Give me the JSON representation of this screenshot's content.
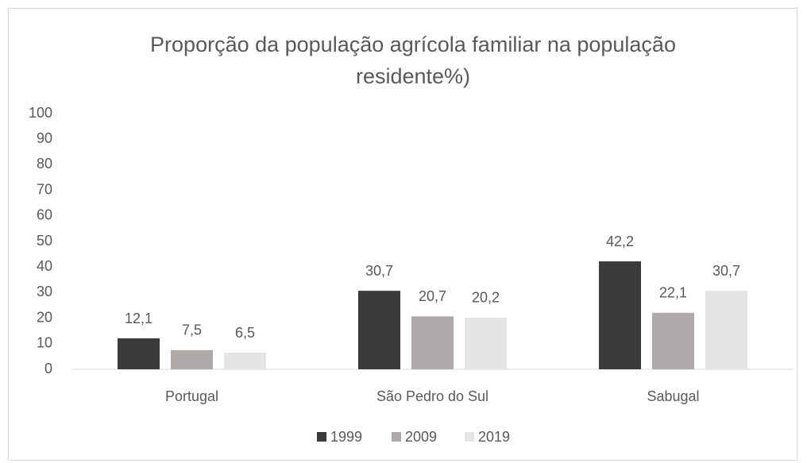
{
  "chart_data": {
    "type": "bar",
    "title": "Proporção da população agrícola familiar na população residente%)",
    "categories": [
      "Portugal",
      "São Pedro do Sul",
      "Sabugal"
    ],
    "series": [
      {
        "name": "1999",
        "color": "#3b3b3b",
        "values": [
          12.1,
          30.7,
          42.2
        ],
        "value_labels": [
          "12,1",
          "30,7",
          "42,2"
        ]
      },
      {
        "name": "2009",
        "color": "#aeaaaa",
        "values": [
          7.5,
          20.7,
          22.1
        ],
        "value_labels": [
          "7,5",
          "20,7",
          "22,1"
        ]
      },
      {
        "name": "2019",
        "color": "#e5e5e5",
        "values": [
          6.5,
          20.2,
          30.7
        ],
        "value_labels": [
          "6,5",
          "20,2",
          "30,7"
        ]
      }
    ],
    "ylim": [
      0,
      100
    ],
    "yticks": [
      0,
      10,
      20,
      30,
      40,
      50,
      60,
      70,
      80,
      90,
      100
    ],
    "grid": false,
    "legend": "bottom"
  }
}
